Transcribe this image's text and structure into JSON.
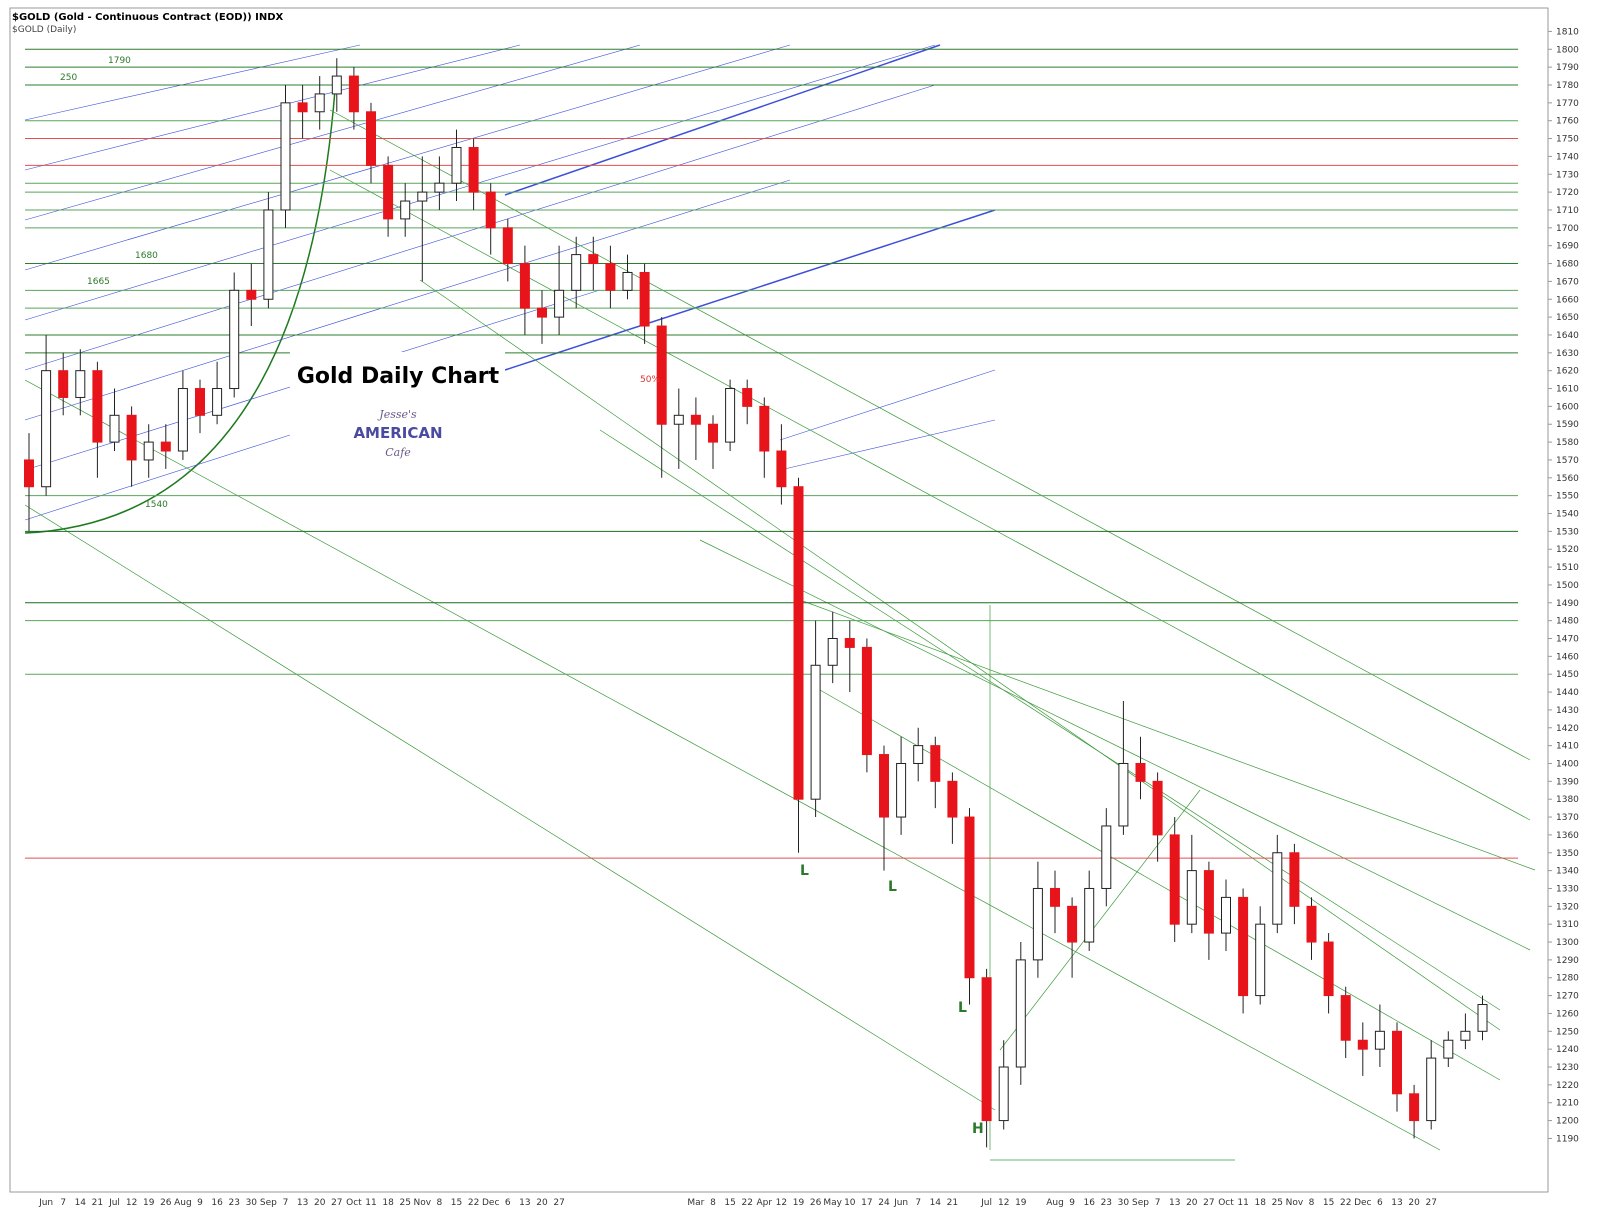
{
  "chart_data": {
    "type": "candlestick",
    "title": "$GOLD (Gold - Continuous Contract (EOD)) INDX",
    "subtitle": "$GOLD (Daily)",
    "annotation": "Gold Daily Chart",
    "logo": [
      "Jesse's",
      "AMERICAN",
      "Cafe"
    ],
    "categories": [
      null,
      "Jun",
      "7",
      "14",
      "21",
      "Jul",
      "12",
      "19",
      "26",
      "Aug",
      "9",
      "16",
      "23",
      "30",
      "Sep",
      "7",
      "13",
      "20",
      "27",
      "Oct",
      "11",
      "18",
      "25",
      "Nov",
      "8",
      "15",
      "22",
      "Dec",
      "6",
      "13",
      "20",
      "27",
      null,
      null,
      null,
      null,
      null,
      null,
      null,
      "Mar",
      "8",
      "15",
      "22",
      "Apr",
      "12",
      "19",
      "26",
      "May",
      "10",
      "17",
      "24",
      "Jun",
      "7",
      "14",
      "21",
      null,
      "Jul",
      "12",
      "19",
      null,
      "Aug",
      "9",
      "16",
      "23",
      "30",
      "Sep",
      "7",
      "13",
      "20",
      "27",
      "Oct",
      "11",
      "18",
      "25",
      "Nov",
      "8",
      "15",
      "22",
      "Dec",
      "6",
      "13",
      "20",
      "27",
      null,
      null,
      null
    ],
    "open": [
      1570,
      1555,
      1620,
      1605,
      1620,
      1580,
      1595,
      1570,
      1580,
      1575,
      1610,
      1595,
      1610,
      1665,
      1660,
      1710,
      1770,
      1765,
      1775,
      1785,
      1765,
      1735,
      1705,
      1715,
      1720,
      1725,
      1745,
      1720,
      1700,
      1680,
      1655,
      1650,
      1665,
      1685,
      1680,
      1665,
      1675,
      1645,
      1590,
      1595,
      1590,
      1580,
      1610,
      1600,
      1575,
      1555,
      1380,
      1455,
      1470,
      1465,
      1405,
      1370,
      1400,
      1410,
      1390,
      1370,
      1280,
      1200,
      1230,
      1290,
      1330,
      1320,
      1300,
      1330,
      1365,
      1400,
      1390,
      1360,
      1310,
      1340,
      1305,
      1325,
      1270,
      1310,
      1350,
      1320,
      1300,
      1270,
      1245,
      1240,
      1250,
      1215,
      1200,
      1235,
      1245,
      1250
    ],
    "high": [
      1585,
      1640,
      1630,
      1632,
      1625,
      1610,
      1600,
      1590,
      1590,
      1620,
      1615,
      1625,
      1675,
      1680,
      1720,
      1780,
      1780,
      1785,
      1795,
      1790,
      1770,
      1740,
      1725,
      1740,
      1740,
      1755,
      1750,
      1725,
      1705,
      1690,
      1665,
      1690,
      1695,
      1695,
      1690,
      1685,
      1680,
      1650,
      1610,
      1605,
      1595,
      1615,
      1615,
      1605,
      1590,
      1560,
      1480,
      1485,
      1480,
      1470,
      1410,
      1415,
      1420,
      1415,
      1395,
      1375,
      1285,
      1245,
      1300,
      1345,
      1340,
      1325,
      1340,
      1375,
      1435,
      1415,
      1395,
      1370,
      1360,
      1345,
      1335,
      1330,
      1320,
      1360,
      1355,
      1325,
      1305,
      1275,
      1255,
      1265,
      1255,
      1220,
      1245,
      1250,
      1260,
      1270
    ],
    "low": [
      1530,
      1550,
      1595,
      1595,
      1560,
      1575,
      1555,
      1560,
      1565,
      1570,
      1585,
      1590,
      1605,
      1645,
      1655,
      1700,
      1750,
      1755,
      1765,
      1755,
      1725,
      1695,
      1695,
      1670,
      1710,
      1715,
      1710,
      1685,
      1670,
      1640,
      1635,
      1640,
      1655,
      1665,
      1655,
      1660,
      1635,
      1560,
      1565,
      1570,
      1565,
      1575,
      1590,
      1560,
      1545,
      1350,
      1370,
      1445,
      1440,
      1395,
      1340,
      1360,
      1390,
      1375,
      1355,
      1265,
      1185,
      1195,
      1220,
      1280,
      1305,
      1280,
      1295,
      1320,
      1360,
      1380,
      1345,
      1300,
      1305,
      1290,
      1295,
      1260,
      1265,
      1305,
      1310,
      1290,
      1260,
      1235,
      1225,
      1230,
      1205,
      1190,
      1195,
      1230,
      1240,
      1245
    ],
    "close": [
      1555,
      1620,
      1605,
      1620,
      1580,
      1595,
      1570,
      1580,
      1575,
      1610,
      1595,
      1610,
      1665,
      1660,
      1710,
      1770,
      1765,
      1775,
      1785,
      1765,
      1735,
      1705,
      1715,
      1720,
      1725,
      1745,
      1720,
      1700,
      1680,
      1655,
      1650,
      1665,
      1685,
      1680,
      1665,
      1675,
      1645,
      1590,
      1595,
      1590,
      1580,
      1610,
      1600,
      1575,
      1555,
      1380,
      1455,
      1470,
      1465,
      1405,
      1370,
      1400,
      1410,
      1390,
      1370,
      1280,
      1200,
      1230,
      1290,
      1330,
      1320,
      1300,
      1330,
      1365,
      1400,
      1390,
      1360,
      1310,
      1340,
      1305,
      1325,
      1270,
      1310,
      1350,
      1320,
      1300,
      1270,
      1245,
      1240,
      1250,
      1215,
      1200,
      1235,
      1245,
      1250,
      1265
    ],
    "up_color": "#ffffff",
    "down_color": "#e8141b",
    "ylim": [
      1160,
      1822
    ],
    "yticks": [
      1190,
      1200,
      1210,
      1220,
      1230,
      1240,
      1250,
      1260,
      1270,
      1280,
      1290,
      1300,
      1310,
      1320,
      1330,
      1340,
      1350,
      1360,
      1370,
      1380,
      1390,
      1400,
      1410,
      1420,
      1430,
      1440,
      1450,
      1460,
      1470,
      1480,
      1490,
      1500,
      1510,
      1520,
      1530,
      1540,
      1550,
      1560,
      1570,
      1580,
      1590,
      1600,
      1610,
      1620,
      1630,
      1640,
      1650,
      1660,
      1670,
      1680,
      1690,
      1700,
      1710,
      1720,
      1730,
      1740,
      1750,
      1760,
      1770,
      1780,
      1790,
      1800,
      1810
    ],
    "levels": [
      {
        "value": 1800,
        "color": "#2e7d2e"
      },
      {
        "value": 1790,
        "color": "#2e7d2e"
      },
      {
        "value": 1780,
        "color": "#2e7d2e"
      },
      {
        "value": 1760,
        "color": "#5aa55a"
      },
      {
        "value": 1750,
        "color": "#e05050"
      },
      {
        "value": 1735,
        "color": "#e05050"
      },
      {
        "value": 1725,
        "color": "#5aa55a"
      },
      {
        "value": 1720,
        "color": "#5aa55a"
      },
      {
        "value": 1710,
        "color": "#5aa55a"
      },
      {
        "value": 1700,
        "color": "#5aa55a"
      },
      {
        "value": 1680,
        "color": "#2e7d2e"
      },
      {
        "value": 1665,
        "color": "#5aa55a"
      },
      {
        "value": 1655,
        "color": "#5aa55a"
      },
      {
        "value": 1640,
        "color": "#2e7d2e"
      },
      {
        "value": 1630,
        "color": "#2e7d2e"
      },
      {
        "value": 1550,
        "color": "#5aa55a"
      },
      {
        "value": 1530,
        "color": "#1f6b1f"
      },
      {
        "value": 1490,
        "color": "#1f6b1f"
      },
      {
        "value": 1480,
        "color": "#5aa55a"
      },
      {
        "value": 1450,
        "color": "#5aa55a"
      },
      {
        "value": 1347,
        "color": "#e05050"
      }
    ],
    "annotations": [
      "250",
      "1790",
      "1680",
      "1665",
      "1540",
      "50%",
      "L",
      "L",
      "L",
      "H"
    ]
  }
}
